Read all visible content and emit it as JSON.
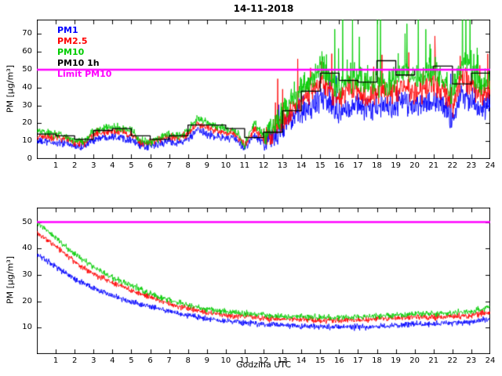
{
  "figure": {
    "title": "14-11-2018"
  },
  "chart_data": [
    {
      "type": "line",
      "title": "14-11-2018",
      "ylabel": "PM [µg/m³]",
      "xlabel": "",
      "xlim": [
        0,
        24
      ],
      "ylim": [
        0,
        78
      ],
      "xticks": [
        1,
        2,
        3,
        4,
        5,
        6,
        7,
        8,
        9,
        10,
        11,
        12,
        13,
        14,
        15,
        16,
        17,
        18,
        19,
        20,
        21,
        22,
        23,
        24
      ],
      "yticks": [
        0,
        10,
        20,
        30,
        40,
        50,
        60,
        70
      ],
      "show_legend": true,
      "x_step": 0.5,
      "noise": [
        1.1,
        3.5,
        12
      ],
      "legend_position": "top-left",
      "series": [
        {
          "name": "PM1",
          "color": "#0000ff",
          "type": "noisy",
          "values": [
            10,
            9.5,
            9,
            9,
            7,
            7,
            11,
            12,
            13,
            12,
            11,
            7,
            7,
            8.5,
            10,
            9,
            11,
            16,
            14,
            12.5,
            12,
            11,
            6,
            13,
            9,
            12,
            17,
            22,
            26,
            30,
            33,
            30,
            27,
            30,
            30,
            27,
            30,
            28,
            30,
            33,
            30,
            32,
            33,
            30,
            24,
            36,
            33,
            28,
            30
          ],
          "spike": {
            "from": 12.6,
            "prob": 0.05,
            "max": 20
          }
        },
        {
          "name": "PM2.5",
          "color": "#ff0000",
          "type": "noisy",
          "values": [
            13,
            12.5,
            12,
            11.5,
            9,
            9,
            14,
            15,
            16,
            15,
            14,
            9,
            9,
            11,
            12.5,
            11.5,
            14,
            20,
            18,
            16,
            15,
            14,
            7,
            17,
            11,
            15,
            21,
            28,
            33,
            38,
            42,
            38,
            34,
            38,
            38,
            34,
            38,
            36,
            38,
            42,
            38,
            40,
            42,
            38,
            30,
            46,
            42,
            36,
            38
          ],
          "spike": {
            "from": 12.6,
            "prob": 0.06,
            "max": 26
          }
        },
        {
          "name": "PM10",
          "color": "#00cc00",
          "type": "noisy",
          "values": [
            16,
            15,
            14,
            13,
            10,
            10,
            16,
            17,
            18,
            17,
            16,
            10,
            10,
            12,
            14,
            13,
            16,
            23,
            21,
            18,
            17,
            16,
            8,
            20,
            13,
            18,
            25,
            33,
            40,
            45,
            50,
            45,
            40,
            45,
            45,
            40,
            45,
            42,
            45,
            50,
            45,
            48,
            50,
            45,
            35,
            55,
            50,
            42,
            45
          ],
          "spike": {
            "from": 12.6,
            "prob": 0.08,
            "max": 45
          }
        },
        {
          "name": "PM10 1h",
          "color": "#000000",
          "type": "step",
          "values": [
            14,
            13,
            11,
            16,
            17,
            13,
            11,
            13,
            19,
            19,
            17,
            12,
            15,
            27,
            38,
            48,
            44,
            43,
            55,
            47,
            50,
            52,
            42,
            48
          ]
        },
        {
          "name": "Limit PM10",
          "color": "#ff00ff",
          "type": "hline",
          "value": 50
        }
      ]
    },
    {
      "type": "line",
      "title": "",
      "ylabel": "PM [µg/m³]",
      "xlabel": "Godzina UTC",
      "xlim": [
        0,
        24
      ],
      "ylim": [
        0,
        55.5
      ],
      "xticks": [
        1,
        2,
        3,
        4,
        5,
        6,
        7,
        8,
        9,
        10,
        11,
        12,
        13,
        14,
        15,
        16,
        17,
        18,
        19,
        20,
        21,
        22,
        23,
        24
      ],
      "yticks": [
        10,
        20,
        30,
        40,
        50
      ],
      "show_legend": false,
      "x_step": 1,
      "noise": [
        0.55,
        0.55,
        24
      ],
      "series": [
        {
          "name": "PM1",
          "color": "#0000ff",
          "type": "noisy",
          "values": [
            38,
            33,
            28.5,
            25,
            22,
            20,
            18,
            16.2,
            14.7,
            13.4,
            12.4,
            11.8,
            11.3,
            10.9,
            10.6,
            10.4,
            10.2,
            10.2,
            10.5,
            10.9,
            11.3,
            11.5,
            11.7,
            12.2,
            13.3
          ]
        },
        {
          "name": "PM2.5",
          "color": "#ff0000",
          "type": "noisy",
          "values": [
            46,
            41,
            35,
            30.5,
            27,
            24,
            21.5,
            19,
            17.3,
            15.8,
            14.8,
            14.2,
            13.7,
            13.3,
            13,
            13,
            12.8,
            13,
            13.3,
            13.7,
            14,
            14,
            14.2,
            14.6,
            16
          ]
        },
        {
          "name": "PM10",
          "color": "#00cc00",
          "type": "noisy",
          "values": [
            50,
            44,
            38,
            33,
            29,
            26,
            23,
            20.5,
            18.5,
            17,
            16,
            15.3,
            14.8,
            14.3,
            14,
            14,
            13.8,
            14,
            14.3,
            14.8,
            15.2,
            15.4,
            15.6,
            16.2,
            18
          ]
        },
        {
          "name": "Limit PM10",
          "color": "#ff00ff",
          "type": "hline",
          "value": 50
        }
      ]
    }
  ]
}
